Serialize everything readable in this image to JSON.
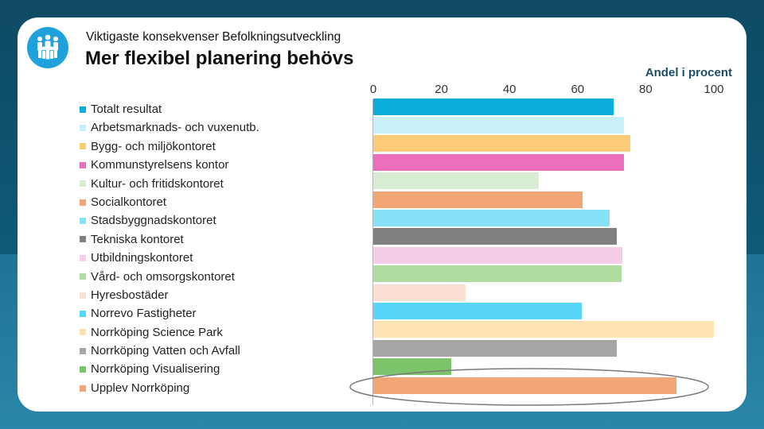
{
  "header": {
    "subtitle": "Viktigaste konsekvenser Befolkningsutveckling",
    "title": "Mer flexibel planering behövs"
  },
  "logo": {
    "icon": "people-group-icon",
    "color": "#1fa2dc"
  },
  "chart_data": {
    "type": "bar",
    "orientation": "horizontal",
    "title": "Mer flexibel planering behövs",
    "xlabel": "Andel i procent",
    "ylabel": "",
    "xlim": [
      0,
      100
    ],
    "xticks": [
      "0",
      "20",
      "40",
      "60",
      "80",
      "100"
    ],
    "grid": false,
    "legend": "left",
    "categories": [
      "Totalt resultat",
      "Arbetsmarknads- och vuxenutb.",
      "Bygg- och miljökontoret",
      "Kommunstyrelsens kontor",
      "Kultur- och fritidskontoret",
      "Socialkontoret",
      "Stadsbyggnadskontoret",
      "Tekniska kontoret",
      "Utbildningskontoret",
      "Vård- och omsorgskontoret",
      "Hyresbostäder",
      "Norrevo Fastigheter",
      "Norrköping Science Park",
      "Norrköping Vatten och Avfall",
      "Norrköping Visualisering",
      "Upplev Norrköping"
    ],
    "values": [
      70.5,
      73.5,
      75.5,
      73.5,
      48.5,
      61.5,
      69.5,
      71.5,
      73.2,
      72.8,
      27,
      61.3,
      100,
      71.5,
      23,
      89
    ],
    "colors": [
      "#0aaedb",
      "#c9f0fa",
      "#fccb77",
      "#ec6fbe",
      "#d8ecd4",
      "#f2a676",
      "#86e2f6",
      "#808080",
      "#f6cce6",
      "#b0dca0",
      "#fbdfd2",
      "#58d6f7",
      "#fde3b2",
      "#a6a6a6",
      "#7cc46a",
      "#f2a676"
    ],
    "highlighted": "Upplev Norrköping"
  }
}
